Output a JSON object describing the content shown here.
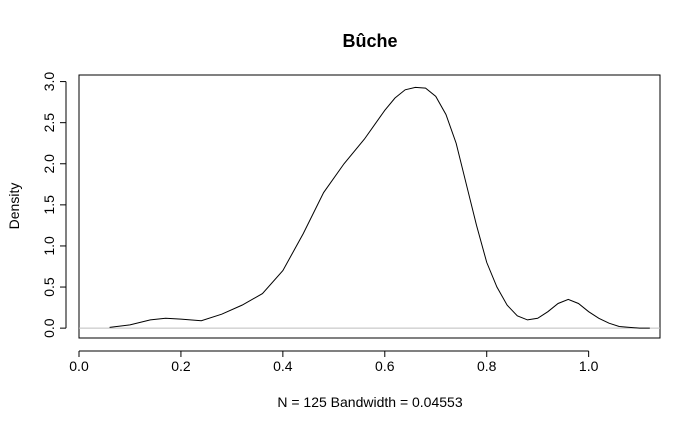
{
  "chart_data": {
    "type": "line",
    "title": "Bûche",
    "xlabel": "N = 125   Bandwidth = 0.04553",
    "ylabel": "Density",
    "xlim": [
      0.0,
      1.14
    ],
    "ylim": [
      -0.12,
      3.08
    ],
    "xticks": [
      "0.0",
      "0.2",
      "0.4",
      "0.6",
      "0.8",
      "1.0"
    ],
    "yticks": [
      "0.0",
      "0.5",
      "1.0",
      "1.5",
      "2.0",
      "2.5",
      "3.0"
    ],
    "baseline": 0,
    "grid": false,
    "series": [
      {
        "x": [
          0.06,
          0.1,
          0.14,
          0.17,
          0.2,
          0.24,
          0.28,
          0.32,
          0.36,
          0.4,
          0.44,
          0.48,
          0.52,
          0.56,
          0.6,
          0.62,
          0.64,
          0.66,
          0.68,
          0.7,
          0.72,
          0.74,
          0.76,
          0.78,
          0.8,
          0.82,
          0.84,
          0.86,
          0.88,
          0.9,
          0.92,
          0.94,
          0.96,
          0.98,
          1.0,
          1.02,
          1.04,
          1.06,
          1.08,
          1.1,
          1.12
        ],
        "y": [
          0.01,
          0.04,
          0.1,
          0.12,
          0.11,
          0.09,
          0.17,
          0.28,
          0.42,
          0.7,
          1.15,
          1.65,
          2.0,
          2.3,
          2.65,
          2.8,
          2.9,
          2.93,
          2.92,
          2.82,
          2.6,
          2.25,
          1.75,
          1.25,
          0.8,
          0.5,
          0.28,
          0.15,
          0.1,
          0.12,
          0.2,
          0.3,
          0.35,
          0.3,
          0.2,
          0.12,
          0.06,
          0.02,
          0.01,
          0.0,
          0.0
        ]
      }
    ]
  }
}
